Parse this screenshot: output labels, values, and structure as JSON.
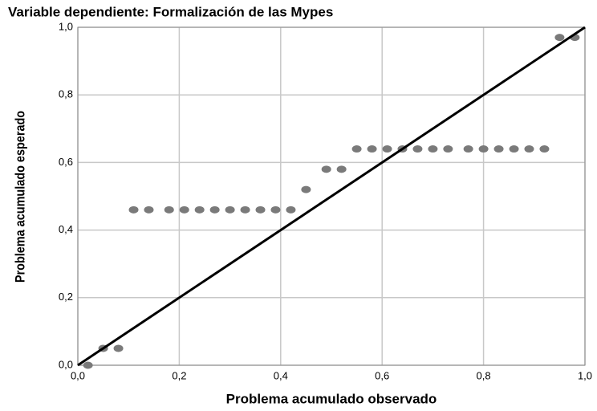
{
  "chart_data": {
    "type": "scatter",
    "title": "Variable dependiente: Formalización de las Mypes",
    "x_label": "Problema acumulado observado",
    "y_label": "Problema acumulado esperado",
    "x": [
      0.02,
      0.05,
      0.08,
      0.11,
      0.14,
      0.18,
      0.21,
      0.24,
      0.27,
      0.3,
      0.33,
      0.36,
      0.39,
      0.42,
      0.45,
      0.49,
      0.52,
      0.55,
      0.58,
      0.61,
      0.64,
      0.67,
      0.7,
      0.73,
      0.77,
      0.8,
      0.83,
      0.86,
      0.89,
      0.92,
      0.95,
      0.98
    ],
    "values": [
      0.0,
      0.05,
      0.05,
      0.46,
      0.46,
      0.46,
      0.46,
      0.46,
      0.46,
      0.46,
      0.46,
      0.46,
      0.46,
      0.46,
      0.52,
      0.58,
      0.58,
      0.64,
      0.64,
      0.64,
      0.64,
      0.64,
      0.64,
      0.64,
      0.64,
      0.64,
      0.64,
      0.64,
      0.64,
      0.64,
      0.97,
      0.97
    ],
    "color": "#7a7a7a",
    "reference_line": {
      "x": [
        0,
        1
      ],
      "y": [
        0,
        1
      ],
      "color": "#000000"
    },
    "xlim": [
      0,
      1
    ],
    "ylim": [
      0,
      1
    ],
    "xticks": [
      {
        "value": 0,
        "label": "0,0"
      },
      {
        "value": 0.2,
        "label": "0,2"
      },
      {
        "value": 0.4,
        "label": "0,4"
      },
      {
        "value": 0.6,
        "label": "0,6"
      },
      {
        "value": 0.8,
        "label": "0,8"
      },
      {
        "value": 1,
        "label": "1,0"
      }
    ],
    "yticks": [
      {
        "value": 0,
        "label": "0,0"
      },
      {
        "value": 0.2,
        "label": "0,2"
      },
      {
        "value": 0.4,
        "label": "0,4"
      },
      {
        "value": 0.6,
        "label": "0,6"
      },
      {
        "value": 0.8,
        "label": "0,8"
      },
      {
        "value": 1,
        "label": "1,0"
      }
    ],
    "grid": true
  }
}
